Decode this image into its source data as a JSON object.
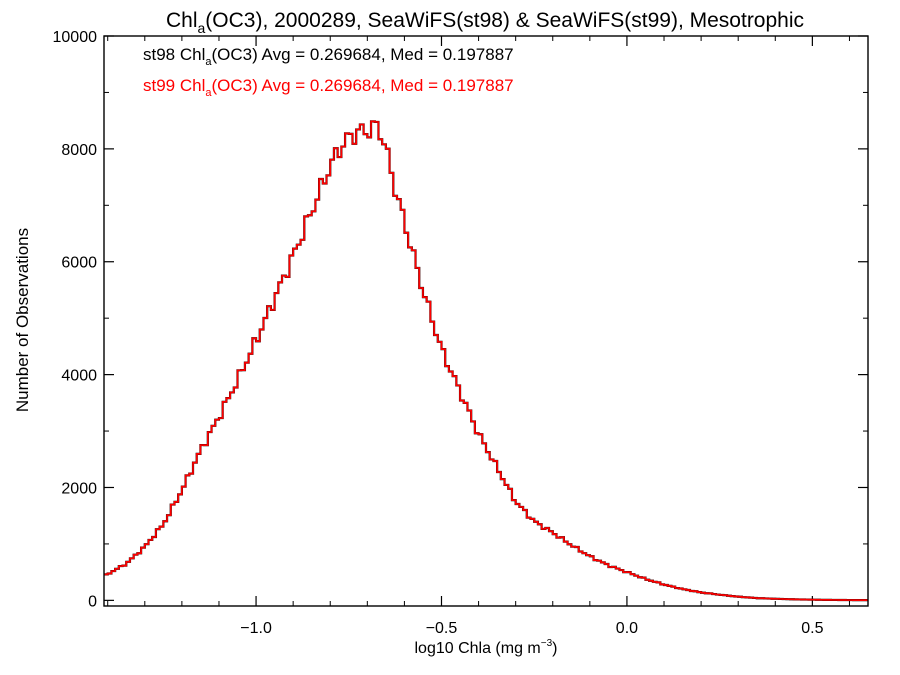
{
  "chart_data": {
    "type": "histogram",
    "title": {
      "main": "Chl",
      "sub": "a",
      "rest": "(OC3), 2000289, SeaWiFS(st98) & SeaWiFS(st99), Mesotrophic"
    },
    "xlabel": {
      "main": "log10 Chla (mg m",
      "sup": "−3",
      "close": ")"
    },
    "ylabel": "Number of Observations",
    "xlim": [
      -1.41,
      0.65
    ],
    "ylim": [
      -100,
      10000
    ],
    "x_ticks": [
      -1.0,
      -0.5,
      0.0,
      0.5
    ],
    "x_tick_labels": [
      "−1.0",
      "−0.5",
      "0.0",
      "0.5"
    ],
    "x_minor_step": 0.1,
    "y_ticks": [
      0,
      2000,
      4000,
      6000,
      8000,
      10000
    ],
    "y_tick_labels": [
      "0",
      "2000",
      "4000",
      "6000",
      "8000",
      "10000"
    ],
    "y_minor_step": 1000,
    "annotations": [
      {
        "prefix": "st98 Chl",
        "sub": "a",
        "suffix": "(OC3) Avg = 0.269684, Med = 0.197887",
        "color": "#000000"
      },
      {
        "prefix": "st99 Chl",
        "sub": "a",
        "suffix": "(OC3) Avg = 0.269684, Med = 0.197887",
        "color": "#ff0000"
      }
    ],
    "series": [
      {
        "color": "#000000",
        "x": [
          -1.41,
          -1.35,
          -1.3,
          -1.25,
          -1.2,
          -1.15,
          -1.1,
          -1.05,
          -1.0,
          -0.95,
          -0.9,
          -0.85,
          -0.8,
          -0.775,
          -0.75,
          -0.725,
          -0.7,
          -0.675,
          -0.66,
          -0.65,
          -0.625,
          -0.6,
          -0.55,
          -0.5,
          -0.45,
          -0.4,
          -0.35,
          -0.3,
          -0.25,
          -0.2,
          -0.15,
          -0.1,
          -0.05,
          0.0,
          0.05,
          0.1,
          0.15,
          0.2,
          0.25,
          0.3,
          0.35,
          0.4,
          0.45,
          0.5,
          0.55,
          0.6,
          0.65
        ],
        "y": [
          430,
          650,
          950,
          1350,
          1950,
          2650,
          3250,
          3900,
          4600,
          5350,
          6100,
          6900,
          7700,
          8000,
          8200,
          8300,
          8320,
          8400,
          8250,
          8000,
          7300,
          6700,
          5500,
          4450,
          3700,
          2950,
          2350,
          1750,
          1400,
          1200,
          980,
          780,
          620,
          500,
          380,
          280,
          200,
          140,
          100,
          65,
          40,
          28,
          18,
          12,
          8,
          5,
          4
        ]
      },
      {
        "color": "#ff0000",
        "x": [
          -1.41,
          -1.35,
          -1.3,
          -1.25,
          -1.2,
          -1.15,
          -1.1,
          -1.05,
          -1.0,
          -0.95,
          -0.9,
          -0.85,
          -0.8,
          -0.775,
          -0.75,
          -0.725,
          -0.7,
          -0.675,
          -0.66,
          -0.65,
          -0.625,
          -0.6,
          -0.55,
          -0.5,
          -0.45,
          -0.4,
          -0.35,
          -0.3,
          -0.25,
          -0.2,
          -0.15,
          -0.1,
          -0.05,
          0.0,
          0.05,
          0.1,
          0.15,
          0.2,
          0.25,
          0.3,
          0.35,
          0.4,
          0.45,
          0.5,
          0.55,
          0.6,
          0.65
        ],
        "y": [
          430,
          650,
          950,
          1350,
          1950,
          2650,
          3250,
          3900,
          4600,
          5350,
          6100,
          6900,
          7700,
          8000,
          8200,
          8300,
          8320,
          8400,
          8250,
          8000,
          7300,
          6700,
          5500,
          4450,
          3700,
          2950,
          2350,
          1750,
          1400,
          1200,
          980,
          780,
          620,
          500,
          380,
          280,
          200,
          140,
          100,
          65,
          40,
          28,
          18,
          12,
          8,
          5,
          4
        ]
      }
    ]
  }
}
